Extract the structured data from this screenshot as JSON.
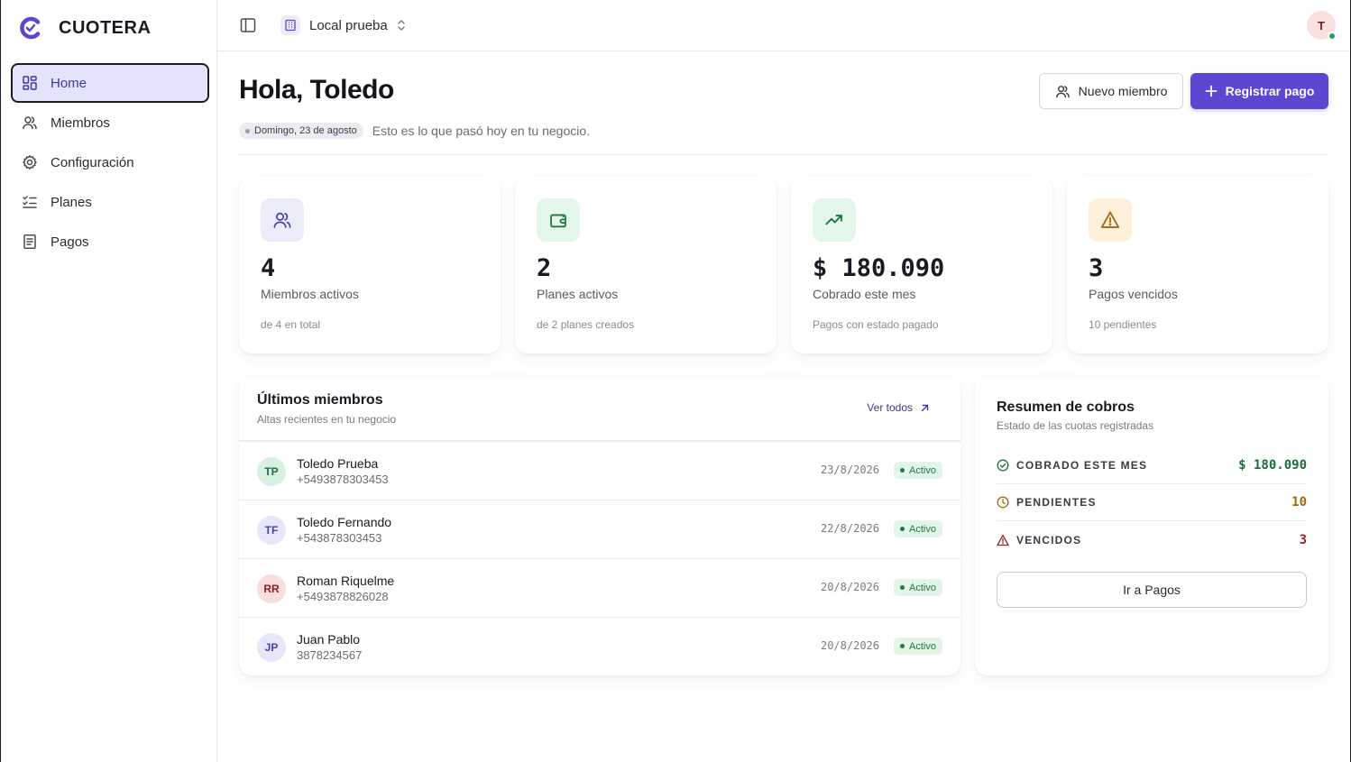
{
  "brand": {
    "name": "CUOTERA"
  },
  "sidebar": {
    "items": [
      {
        "label": "Home",
        "icon": "dashboard-grid-icon",
        "active": true
      },
      {
        "label": "Miembros",
        "icon": "users-icon"
      },
      {
        "label": "Configuración",
        "icon": "gear-icon"
      },
      {
        "label": "Planes",
        "icon": "list-checks-icon"
      },
      {
        "label": "Pagos",
        "icon": "receipt-icon"
      }
    ]
  },
  "topbar": {
    "local": "Local prueba",
    "avatar_initial": "T"
  },
  "header": {
    "greeting": "Hola, Toledo",
    "date": "Domingo, 23 de agosto",
    "subtitle": "Esto es lo que pasó hoy en tu negocio.",
    "new_member_label": "Nuevo miembro",
    "register_payment_label": "Registrar pago"
  },
  "stats": [
    {
      "value": "4",
      "label": "Miembros activos",
      "sub": "de 4 en total",
      "icon": "users-icon",
      "bg": "#ecebf9",
      "color": "#4a3fb0"
    },
    {
      "value": "2",
      "label": "Planes activos",
      "sub": "de 2 planes creados",
      "icon": "wallet-icon",
      "bg": "#e4f5ea",
      "color": "#1e7a3e"
    },
    {
      "value": "$ 180.090",
      "label": "Cobrado este mes",
      "sub": "Pagos con estado pagado",
      "icon": "trending-up-icon",
      "bg": "#e4f5ea",
      "color": "#1e7a3e"
    },
    {
      "value": "3",
      "label": "Pagos vencidos",
      "sub": "10 pendientes",
      "icon": "warning-icon",
      "bg": "#fdf1dc",
      "color": "#a8660c"
    }
  ],
  "members": {
    "title": "Últimos miembros",
    "subtitle": "Altas recientes en tu negocio",
    "see_all": "Ver todos",
    "rows": [
      {
        "initials": "TP",
        "name": "Toledo Prueba",
        "phone": "+5493878303453",
        "date": "23/8/2026",
        "status": "Activo",
        "avatar_bg": "#d6f1df",
        "avatar_color": "#1e6b3a"
      },
      {
        "initials": "TF",
        "name": "Toledo Fernando",
        "phone": "+543878303453",
        "date": "22/8/2026",
        "status": "Activo",
        "avatar_bg": "#e8e6fa",
        "avatar_color": "#4a3fb0"
      },
      {
        "initials": "RR",
        "name": "Roman Riquelme",
        "phone": "+5493878826028",
        "date": "20/8/2026",
        "status": "Activo",
        "avatar_bg": "#fbdcdc",
        "avatar_color": "#8a2020"
      },
      {
        "initials": "JP",
        "name": "Juan Pablo",
        "phone": "3878234567",
        "date": "20/8/2026",
        "status": "Activo",
        "avatar_bg": "#e8e6fa",
        "avatar_color": "#4a3fb0"
      }
    ]
  },
  "summary": {
    "title": "Resumen de cobros",
    "subtitle": "Estado de las cuotas registradas",
    "rows": [
      {
        "label": "COBRADO ESTE MES",
        "value": "$ 180.090",
        "icon": "check-circle-icon",
        "color": "#1e6b3a"
      },
      {
        "label": "PENDIENTES",
        "value": "10",
        "icon": "clock-icon",
        "color": "#a8660c"
      },
      {
        "label": "VENCIDOS",
        "value": "3",
        "icon": "warning-icon",
        "color": "#9a1f1f"
      }
    ],
    "button_label": "Ir a Pagos"
  },
  "colors": {
    "accent": "#5b47d1",
    "active_nav_bg": "#e5e3fb"
  }
}
